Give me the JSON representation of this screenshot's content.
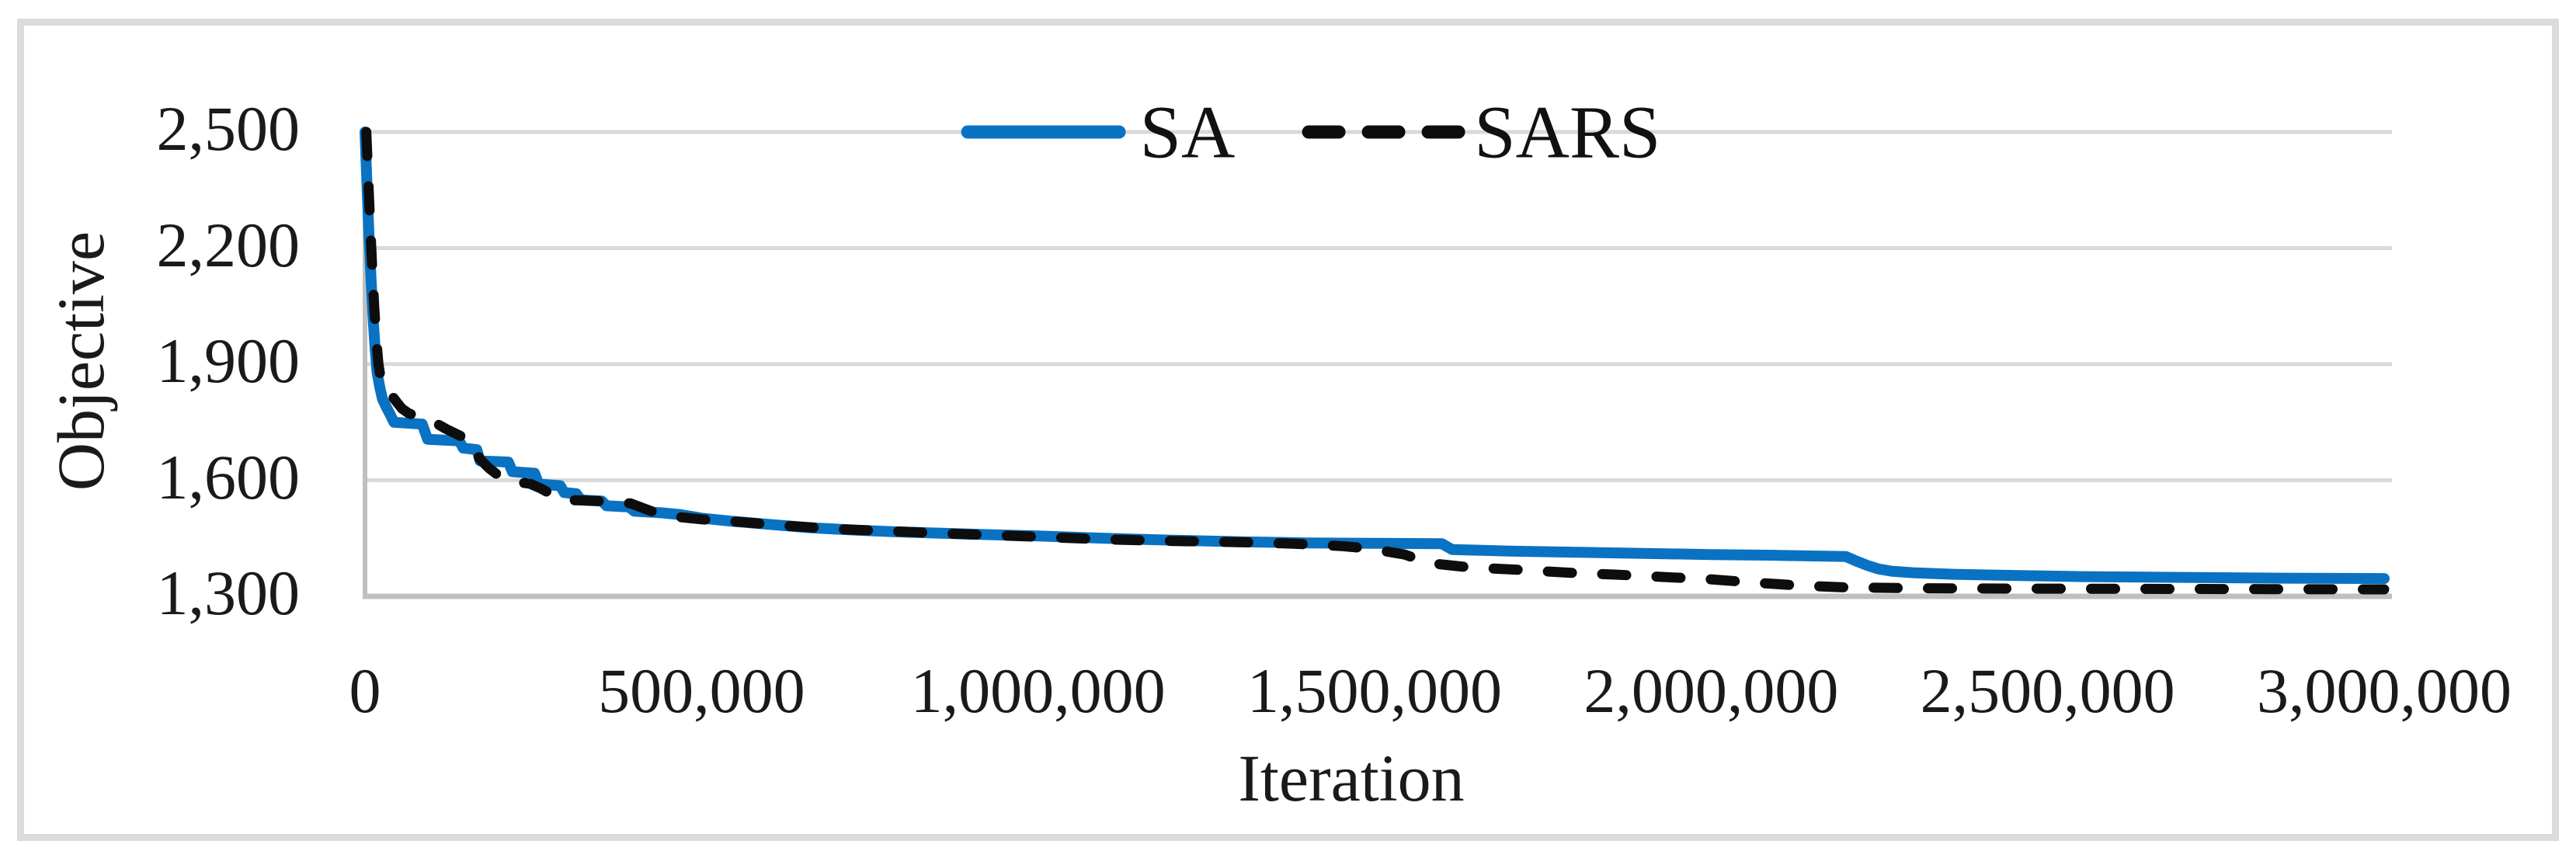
{
  "colors": {
    "series_sa": "#0A72C2",
    "series_sars": "#0D0D0D",
    "gridline": "#D9D9D9",
    "axis_line": "#BFBFBF",
    "figure_border": "#DBDBDB",
    "text": "#1A1A1A",
    "background": "#FFFFFF"
  },
  "chart_data": {
    "type": "line",
    "title": "",
    "xlabel": "Iteration",
    "ylabel": "Objective",
    "xlim": [
      0,
      3000000
    ],
    "ylim": [
      1300,
      2500
    ],
    "x_ticks": [
      0,
      500000,
      1000000,
      1500000,
      2000000,
      2500000,
      3000000
    ],
    "x_tick_labels": [
      "0",
      "500,000",
      "1,000,000",
      "1,500,000",
      "2,000,000",
      "2,500,000",
      "3,000,000"
    ],
    "y_ticks": [
      1300,
      1600,
      1900,
      2200,
      2500
    ],
    "y_tick_labels": [
      "1,300",
      "1,600",
      "1,900",
      "2,200",
      "2,500"
    ],
    "grid": "horizontal-only",
    "legend_position": "top-center-inside",
    "series": [
      {
        "name": "SA",
        "color": "#0A72C2",
        "style": "solid",
        "points": [
          [
            0,
            2500
          ],
          [
            3000,
            2360
          ],
          [
            6000,
            2230
          ],
          [
            9000,
            2120
          ],
          [
            12000,
            2020
          ],
          [
            15000,
            1940
          ],
          [
            18000,
            1878
          ],
          [
            22000,
            1840
          ],
          [
            26000,
            1810
          ],
          [
            32000,
            1788
          ],
          [
            38000,
            1768
          ],
          [
            43000,
            1750
          ],
          [
            85000,
            1745
          ],
          [
            93000,
            1706
          ],
          [
            140000,
            1702
          ],
          [
            146000,
            1683
          ],
          [
            166000,
            1679
          ],
          [
            171000,
            1650
          ],
          [
            213000,
            1647
          ],
          [
            219000,
            1622
          ],
          [
            252000,
            1618
          ],
          [
            258000,
            1590
          ],
          [
            290000,
            1586
          ],
          [
            296000,
            1568
          ],
          [
            314000,
            1565
          ],
          [
            321000,
            1549
          ],
          [
            352000,
            1546
          ],
          [
            359000,
            1534
          ],
          [
            392000,
            1531
          ],
          [
            400000,
            1520
          ],
          [
            440000,
            1516
          ],
          [
            470000,
            1511
          ],
          [
            500000,
            1502
          ],
          [
            545000,
            1494
          ],
          [
            600000,
            1486
          ],
          [
            663000,
            1477
          ],
          [
            730000,
            1471
          ],
          [
            800000,
            1466
          ],
          [
            895000,
            1461
          ],
          [
            1000000,
            1456
          ],
          [
            1100000,
            1450
          ],
          [
            1200000,
            1445
          ],
          [
            1300000,
            1441
          ],
          [
            1400000,
            1438
          ],
          [
            1500000,
            1437
          ],
          [
            1600000,
            1436
          ],
          [
            1615000,
            1421
          ],
          [
            1700000,
            1417
          ],
          [
            1800000,
            1414
          ],
          [
            1900000,
            1411
          ],
          [
            2000000,
            1408
          ],
          [
            2100000,
            1406
          ],
          [
            2200000,
            1403
          ],
          [
            2216000,
            1391
          ],
          [
            2232000,
            1380
          ],
          [
            2248000,
            1371
          ],
          [
            2268000,
            1365
          ],
          [
            2300000,
            1361
          ],
          [
            2360000,
            1357
          ],
          [
            2450000,
            1354
          ],
          [
            2550000,
            1351
          ],
          [
            2700000,
            1349
          ],
          [
            2850000,
            1347
          ],
          [
            3000000,
            1346
          ]
        ]
      },
      {
        "name": "SARS",
        "color": "#0D0D0D",
        "style": "dashed",
        "points": [
          [
            2000,
            2500
          ],
          [
            5000,
            2370
          ],
          [
            8000,
            2250
          ],
          [
            11000,
            2140
          ],
          [
            14000,
            2040
          ],
          [
            17000,
            1960
          ],
          [
            20000,
            1900
          ],
          [
            24000,
            1856
          ],
          [
            28000,
            1832
          ],
          [
            34000,
            1824
          ],
          [
            40000,
            1818
          ],
          [
            48000,
            1800
          ],
          [
            55000,
            1785
          ],
          [
            65000,
            1773
          ],
          [
            80000,
            1763
          ],
          [
            100000,
            1753
          ],
          [
            120000,
            1733
          ],
          [
            140000,
            1716
          ],
          [
            160000,
            1700
          ],
          [
            170000,
            1656
          ],
          [
            185000,
            1630
          ],
          [
            205000,
            1603
          ],
          [
            225000,
            1596
          ],
          [
            245000,
            1591
          ],
          [
            260000,
            1580
          ],
          [
            280000,
            1561
          ],
          [
            296000,
            1549
          ],
          [
            320000,
            1548
          ],
          [
            350000,
            1546
          ],
          [
            375000,
            1543
          ],
          [
            395000,
            1540
          ],
          [
            418000,
            1525
          ],
          [
            432000,
            1516
          ],
          [
            460000,
            1506
          ],
          [
            500000,
            1499
          ],
          [
            560000,
            1492
          ],
          [
            620000,
            1483
          ],
          [
            700000,
            1474
          ],
          [
            800000,
            1467
          ],
          [
            900000,
            1460
          ],
          [
            1000000,
            1454
          ],
          [
            1100000,
            1447
          ],
          [
            1200000,
            1443
          ],
          [
            1300000,
            1440
          ],
          [
            1380000,
            1436
          ],
          [
            1450000,
            1430
          ],
          [
            1490000,
            1424
          ],
          [
            1545000,
            1408
          ],
          [
            1580000,
            1386
          ],
          [
            1640000,
            1375
          ],
          [
            1720000,
            1368
          ],
          [
            1790000,
            1361
          ],
          [
            1860000,
            1356
          ],
          [
            1930000,
            1350
          ],
          [
            2000000,
            1344
          ],
          [
            2060000,
            1336
          ],
          [
            2130000,
            1328
          ],
          [
            2200000,
            1323
          ],
          [
            2300000,
            1321
          ],
          [
            2450000,
            1320
          ],
          [
            2700000,
            1319
          ],
          [
            3000000,
            1318
          ]
        ]
      }
    ]
  }
}
